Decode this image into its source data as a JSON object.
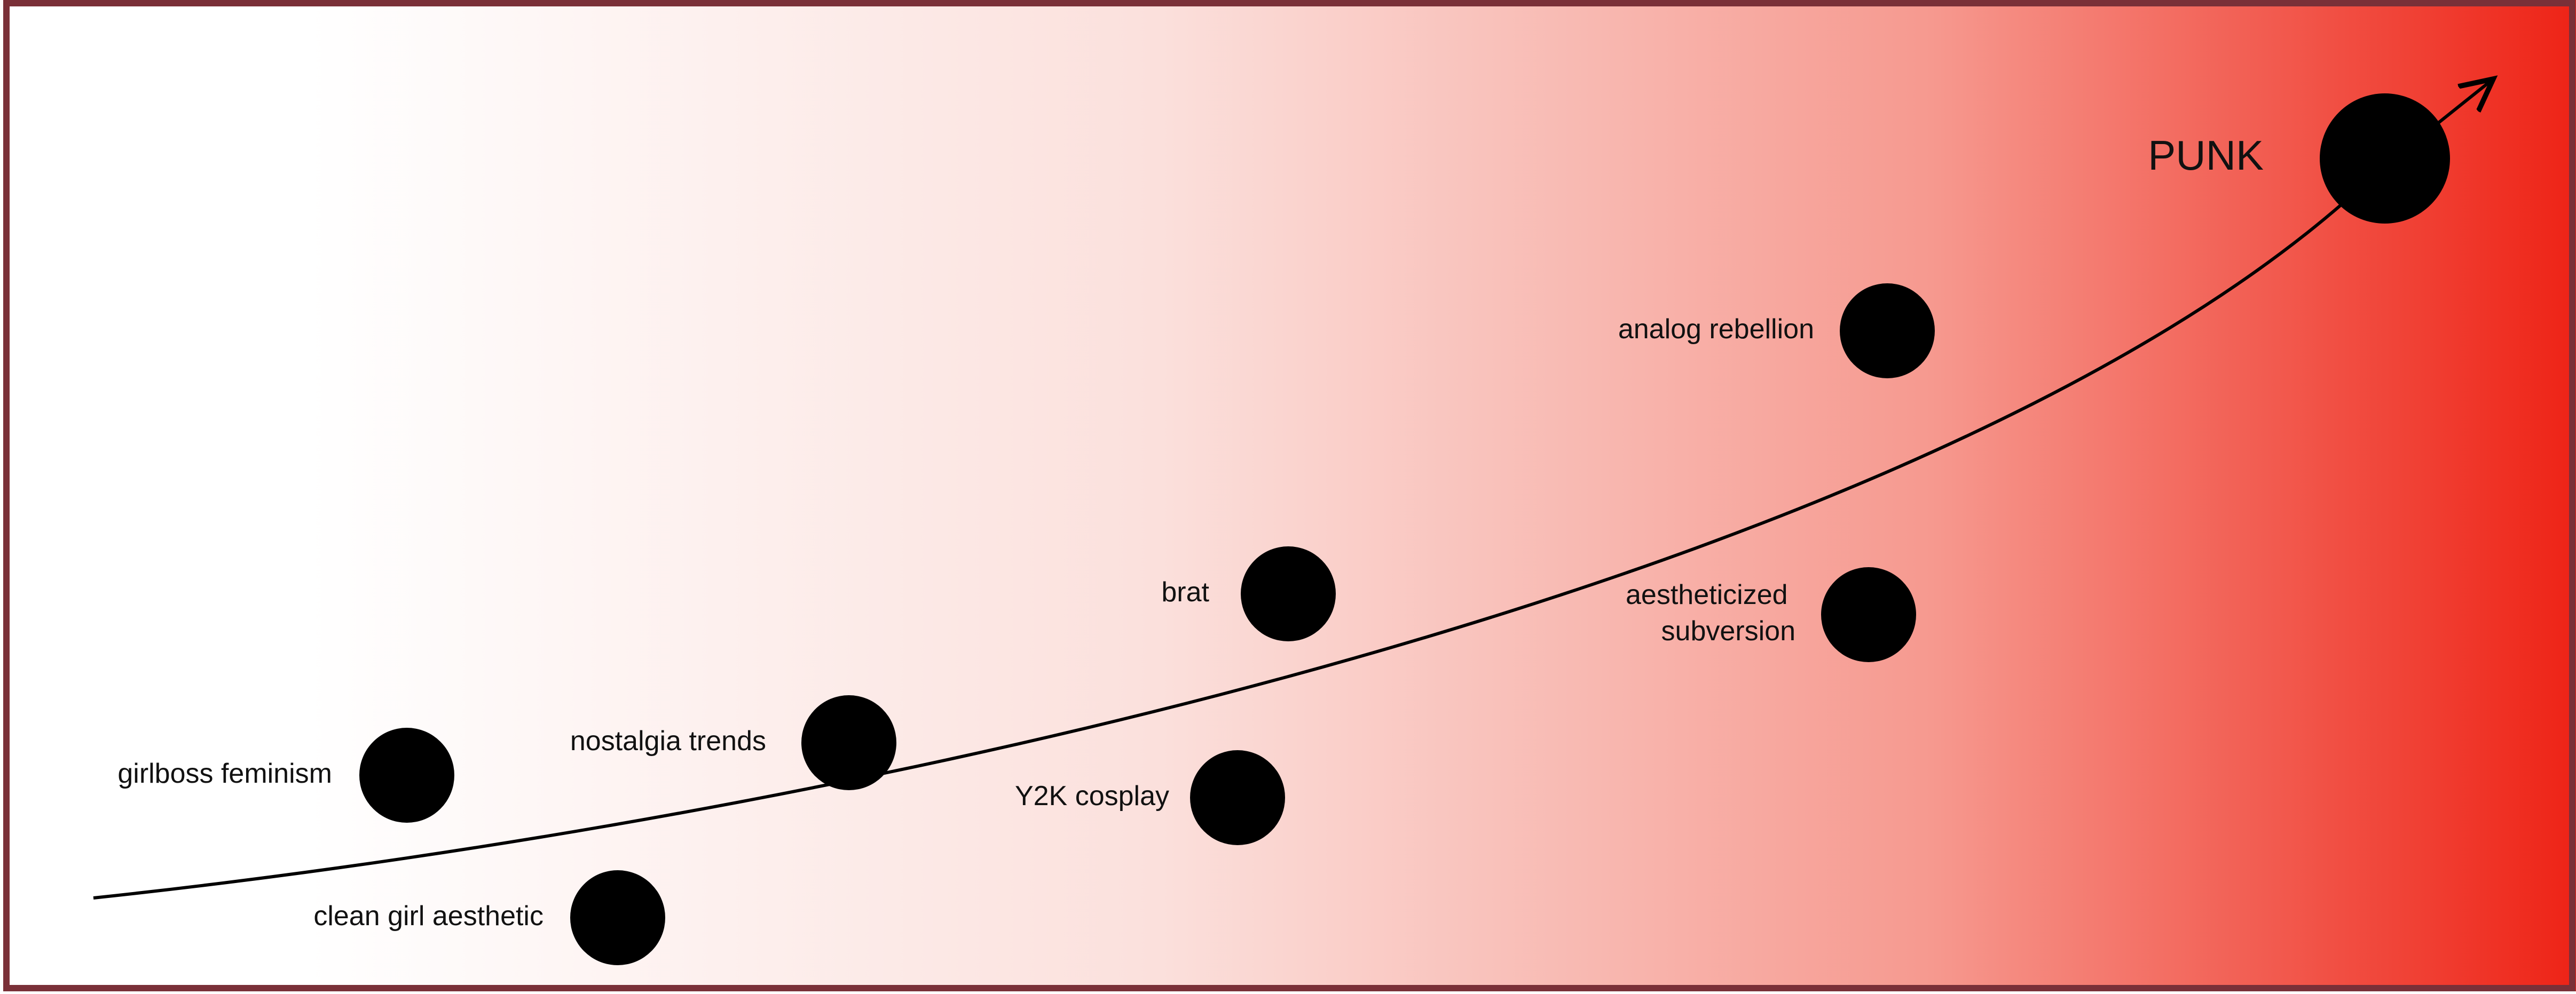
{
  "diagram": {
    "gradient": {
      "start_color": "#ffffff",
      "end_color": "#ee2316"
    },
    "border_color": "#7a3038",
    "curve_color": "#000000",
    "dot_color": "#000000",
    "nodes": [
      {
        "id": "girlboss",
        "label_lines": [
          "girlboss feminism"
        ]
      },
      {
        "id": "clean-girl",
        "label_lines": [
          "clean girl aesthetic"
        ]
      },
      {
        "id": "nostalgia",
        "label_lines": [
          "nostalgia trends"
        ]
      },
      {
        "id": "y2k",
        "label_lines": [
          "Y2K cosplay"
        ]
      },
      {
        "id": "brat",
        "label_lines": [
          "brat"
        ]
      },
      {
        "id": "aestheticized",
        "label_lines": [
          "aestheticized",
          "subversion"
        ]
      },
      {
        "id": "analog",
        "label_lines": [
          "analog rebellion"
        ]
      },
      {
        "id": "punk",
        "label_lines": [
          "PUNK"
        ]
      }
    ]
  }
}
